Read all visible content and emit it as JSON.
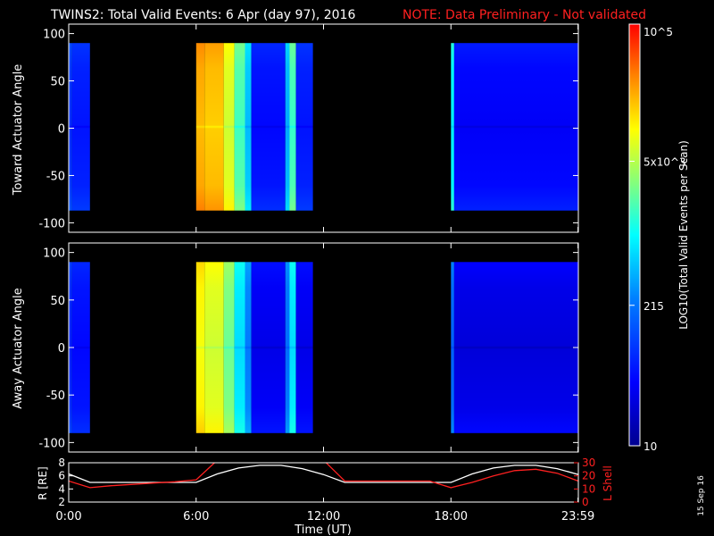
{
  "header": {
    "title": "TWINS2: Total Valid Events:  6 Apr (day  97), 2016",
    "note": "NOTE: Data Preliminary - Not validated"
  },
  "colorbar": {
    "label": "LOG10(Total Valid Events per Scan)",
    "ticks": [
      "10",
      "215",
      "5x10^3",
      "10^5"
    ],
    "tick_values": [
      10,
      215,
      5000,
      100000
    ]
  },
  "footer": {
    "date_stamp": "15 Sep 16"
  },
  "colors": {
    "white": "#ffffff",
    "red": "#ff2020",
    "background": "#000000"
  },
  "chart_data": [
    {
      "type": "heatmap",
      "panel": "top",
      "ylabel": "Toward Actuator Angle",
      "ylim": [
        -110,
        110
      ],
      "yticks": [
        "100",
        "50",
        "0",
        "-50",
        "-100"
      ],
      "data_angle_range": [
        -87,
        90
      ],
      "x_range_hours": [
        0,
        24
      ],
      "coverage_hours": [
        [
          0,
          1
        ],
        [
          6,
          11.5
        ],
        [
          18,
          24
        ]
      ],
      "intensity_blocks": [
        {
          "from": 0.0,
          "to": 0.15,
          "level": 0.22
        },
        {
          "from": 0.15,
          "to": 1.0,
          "level": 0.18
        },
        {
          "from": 6.0,
          "to": 6.4,
          "level": 0.82
        },
        {
          "from": 6.4,
          "to": 7.3,
          "level": 0.8
        },
        {
          "from": 7.3,
          "to": 7.8,
          "level": 0.7
        },
        {
          "from": 7.8,
          "to": 8.3,
          "level": 0.56
        },
        {
          "from": 8.3,
          "to": 8.6,
          "level": 0.42
        },
        {
          "from": 8.6,
          "to": 10.2,
          "level": 0.16
        },
        {
          "from": 10.2,
          "to": 10.4,
          "level": 0.4
        },
        {
          "from": 10.4,
          "to": 10.7,
          "level": 0.55
        },
        {
          "from": 10.7,
          "to": 11.5,
          "level": 0.18
        },
        {
          "from": 18.0,
          "to": 18.15,
          "level": 0.48
        },
        {
          "from": 18.15,
          "to": 24.0,
          "level": 0.14
        }
      ]
    },
    {
      "type": "heatmap",
      "panel": "middle",
      "ylabel": "Away Actuator Angle",
      "ylim": [
        -110,
        110
      ],
      "yticks": [
        "100",
        "50",
        "0",
        "-50",
        "-100"
      ],
      "data_angle_range": [
        -90,
        90
      ],
      "x_range_hours": [
        0,
        24
      ],
      "coverage_hours": [
        [
          0,
          1
        ],
        [
          6,
          11.5
        ],
        [
          18,
          24
        ]
      ],
      "intensity_blocks": [
        {
          "from": 0.0,
          "to": 0.15,
          "level": 0.2
        },
        {
          "from": 0.15,
          "to": 1.0,
          "level": 0.16
        },
        {
          "from": 6.0,
          "to": 6.4,
          "level": 0.74
        },
        {
          "from": 6.4,
          "to": 7.3,
          "level": 0.7
        },
        {
          "from": 7.3,
          "to": 7.8,
          "level": 0.6
        },
        {
          "from": 7.8,
          "to": 8.3,
          "level": 0.46
        },
        {
          "from": 8.3,
          "to": 8.6,
          "level": 0.34
        },
        {
          "from": 8.6,
          "to": 10.2,
          "level": 0.12
        },
        {
          "from": 10.2,
          "to": 10.4,
          "level": 0.32
        },
        {
          "from": 10.4,
          "to": 10.7,
          "level": 0.46
        },
        {
          "from": 10.7,
          "to": 11.5,
          "level": 0.12
        },
        {
          "from": 18.0,
          "to": 18.15,
          "level": 0.3
        },
        {
          "from": 18.15,
          "to": 24.0,
          "level": 0.1
        }
      ]
    },
    {
      "type": "line",
      "panel": "bottom",
      "ylabel_left": "R [RE]",
      "ylabel_right": "L Shell",
      "ylim_left": [
        2,
        8
      ],
      "ylim_right": [
        0,
        30
      ],
      "yticks_left": [
        "8",
        "6",
        "4",
        "2"
      ],
      "yticks_right": [
        "30",
        "20",
        "10",
        "0"
      ],
      "xlabel": "Time (UT)",
      "xticks": [
        "0:00",
        "6:00",
        "12:00",
        "18:00",
        "23:59"
      ],
      "xtick_hours": [
        0,
        6,
        12,
        18,
        23.983
      ],
      "series": [
        {
          "axis": "left",
          "color": "#ffffff",
          "x": [
            0,
            1,
            2,
            3,
            4,
            5,
            6,
            7,
            8,
            9,
            10,
            11,
            12,
            13,
            14,
            15,
            16,
            17,
            18,
            19,
            20,
            21,
            22,
            23,
            24
          ],
          "y": [
            6.3,
            5.0,
            5.0,
            5.0,
            5.0,
            5.0,
            5.0,
            6.3,
            7.2,
            7.6,
            7.6,
            7.1,
            6.2,
            5.0,
            5.0,
            5.0,
            5.0,
            5.0,
            5.0,
            6.3,
            7.2,
            7.6,
            7.6,
            7.1,
            6.2
          ]
        },
        {
          "axis": "right",
          "color": "#ff2020",
          "x": [
            0,
            1,
            2,
            3,
            4,
            5,
            6,
            7,
            8,
            9,
            10,
            11,
            12,
            13,
            14,
            15,
            16,
            17,
            18,
            19,
            20,
            21,
            22,
            23,
            24
          ],
          "y": [
            16,
            11,
            12.5,
            13.5,
            14.5,
            15.5,
            17,
            32,
            32,
            32,
            32,
            32,
            32,
            16,
            16,
            16,
            16,
            16,
            11,
            15,
            20,
            24,
            25,
            22,
            16
          ]
        }
      ]
    }
  ]
}
